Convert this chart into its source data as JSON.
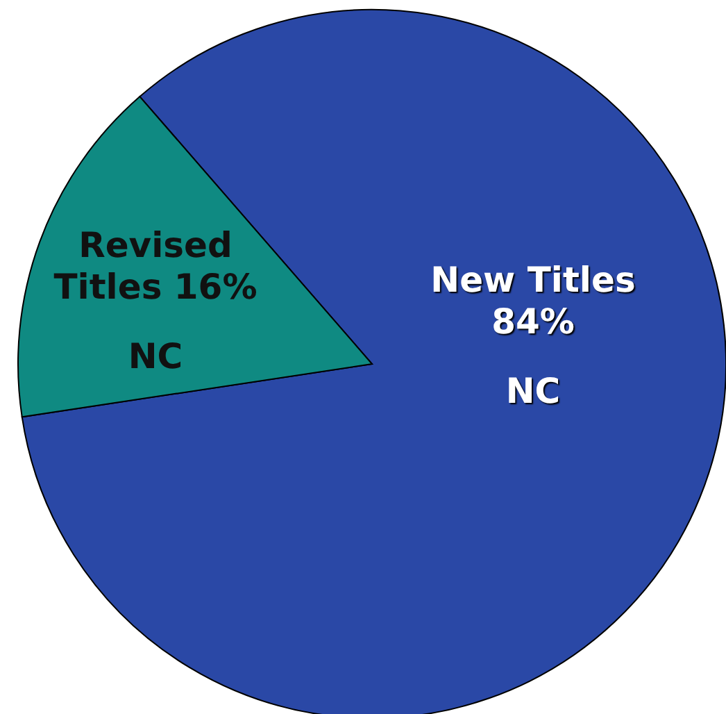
{
  "chart_data": {
    "type": "pie",
    "categories": [
      "New Titles",
      "Revised Titles"
    ],
    "values": [
      84,
      16
    ],
    "colors": [
      "#2a48a6",
      "#0f8a82"
    ],
    "value_labels": [
      "84%",
      "16%"
    ],
    "annotations": [
      "NC",
      "NC"
    ]
  }
}
